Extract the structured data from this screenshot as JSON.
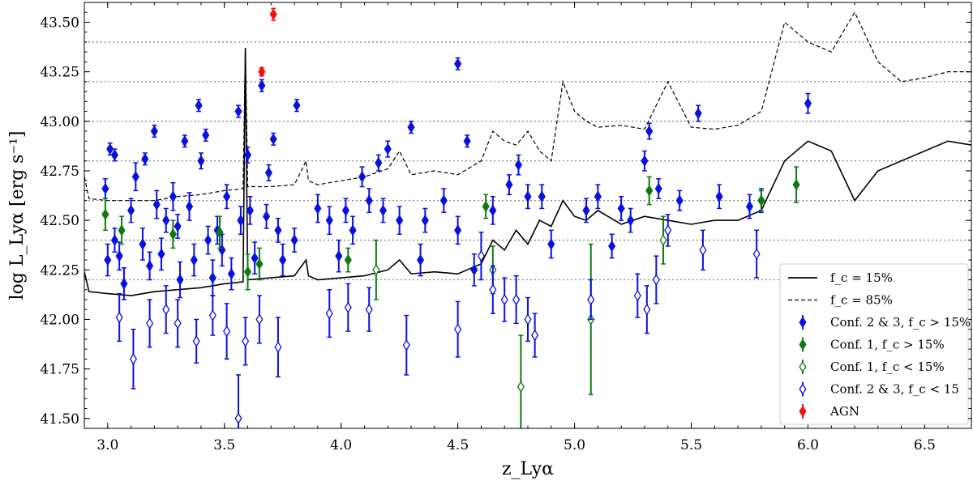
{
  "chart_data": {
    "type": "scatter",
    "xlabel": "z_Lyα",
    "ylabel": "log L_Lyα [erg s⁻¹]",
    "xlim": [
      2.9,
      6.7
    ],
    "ylim": [
      41.45,
      43.6
    ],
    "x_ticks": [
      "3.0",
      "3.5",
      "4.0",
      "4.5",
      "5.0",
      "5.5",
      "6.0",
      "6.5"
    ],
    "y_ticks": [
      "41.50",
      "41.75",
      "42.00",
      "42.25",
      "42.50",
      "42.75",
      "43.00",
      "43.25",
      "43.50"
    ],
    "reference_lines_y": [
      42.2,
      42.4,
      42.6,
      42.8,
      43.0,
      43.2,
      43.4
    ],
    "legend_position": "lower-right",
    "legend": [
      {
        "key": "fc15",
        "label": "f_c = 15%"
      },
      {
        "key": "fc85",
        "label": "f_c = 85%"
      },
      {
        "key": "conf23_gt",
        "label": "Conf. 2 & 3, f_c > 15%"
      },
      {
        "key": "conf1_gt",
        "label": "Conf. 1, f_c > 15%"
      },
      {
        "key": "conf1_lt",
        "label": "Conf. 1, f_c < 15%"
      },
      {
        "key": "conf23_lt",
        "label": "Conf. 2 & 3, f_c < 15"
      },
      {
        "key": "agn",
        "label": "AGN"
      }
    ],
    "colors": {
      "blue": "#0a10e0",
      "green": "#0f7a0f",
      "red": "#ee1111",
      "line": "#000000",
      "grid": "#888888"
    },
    "lines": {
      "fc15": [
        [
          2.9,
          42.24
        ],
        [
          2.92,
          42.14
        ],
        [
          3.0,
          42.13
        ],
        [
          3.1,
          42.12
        ],
        [
          3.2,
          42.14
        ],
        [
          3.3,
          42.15
        ],
        [
          3.4,
          42.16
        ],
        [
          3.5,
          42.18
        ],
        [
          3.58,
          42.19
        ],
        [
          3.59,
          43.37
        ],
        [
          3.6,
          42.2
        ],
        [
          3.7,
          42.21
        ],
        [
          3.8,
          42.22
        ],
        [
          3.85,
          42.3
        ],
        [
          3.86,
          42.22
        ],
        [
          3.9,
          42.2
        ],
        [
          4.0,
          42.21
        ],
        [
          4.1,
          42.22
        ],
        [
          4.2,
          42.25
        ],
        [
          4.25,
          42.3
        ],
        [
          4.3,
          42.23
        ],
        [
          4.4,
          42.24
        ],
        [
          4.5,
          42.23
        ],
        [
          4.6,
          42.28
        ],
        [
          4.65,
          42.4
        ],
        [
          4.7,
          42.35
        ],
        [
          4.75,
          42.45
        ],
        [
          4.8,
          42.38
        ],
        [
          4.85,
          42.5
        ],
        [
          4.9,
          42.47
        ],
        [
          4.95,
          42.6
        ],
        [
          5.0,
          42.52
        ],
        [
          5.05,
          42.5
        ],
        [
          5.1,
          42.55
        ],
        [
          5.2,
          42.48
        ],
        [
          5.3,
          42.52
        ],
        [
          5.4,
          42.5
        ],
        [
          5.5,
          42.48
        ],
        [
          5.6,
          42.5
        ],
        [
          5.7,
          42.5
        ],
        [
          5.8,
          42.55
        ],
        [
          5.9,
          42.8
        ],
        [
          6.0,
          42.9
        ],
        [
          6.1,
          42.85
        ],
        [
          6.2,
          42.6
        ],
        [
          6.3,
          42.75
        ],
        [
          6.4,
          42.8
        ],
        [
          6.5,
          42.85
        ],
        [
          6.6,
          42.9
        ],
        [
          6.7,
          42.88
        ]
      ],
      "fc85": [
        [
          2.9,
          42.72
        ],
        [
          2.92,
          42.61
        ],
        [
          3.0,
          42.6
        ],
        [
          3.1,
          42.6
        ],
        [
          3.2,
          42.6
        ],
        [
          3.3,
          42.62
        ],
        [
          3.4,
          42.63
        ],
        [
          3.5,
          42.65
        ],
        [
          3.58,
          42.66
        ],
        [
          3.59,
          43.37
        ],
        [
          3.6,
          42.67
        ],
        [
          3.7,
          42.67
        ],
        [
          3.8,
          42.68
        ],
        [
          3.85,
          42.8
        ],
        [
          3.86,
          42.7
        ],
        [
          3.9,
          42.68
        ],
        [
          4.0,
          42.7
        ],
        [
          4.1,
          42.72
        ],
        [
          4.2,
          42.76
        ],
        [
          4.25,
          42.85
        ],
        [
          4.3,
          42.73
        ],
        [
          4.4,
          42.75
        ],
        [
          4.5,
          42.73
        ],
        [
          4.6,
          42.8
        ],
        [
          4.65,
          42.95
        ],
        [
          4.7,
          42.9
        ],
        [
          4.75,
          42.88
        ],
        [
          4.8,
          42.95
        ],
        [
          4.85,
          42.85
        ],
        [
          4.9,
          42.8
        ],
        [
          4.95,
          43.2
        ],
        [
          5.0,
          43.05
        ],
        [
          5.05,
          43.0
        ],
        [
          5.1,
          42.97
        ],
        [
          5.2,
          42.98
        ],
        [
          5.3,
          42.96
        ],
        [
          5.4,
          43.2
        ],
        [
          5.5,
          42.97
        ],
        [
          5.6,
          42.96
        ],
        [
          5.7,
          42.98
        ],
        [
          5.8,
          43.05
        ],
        [
          5.9,
          43.5
        ],
        [
          6.0,
          43.4
        ],
        [
          6.1,
          43.35
        ],
        [
          6.2,
          43.55
        ],
        [
          6.3,
          43.3
        ],
        [
          6.4,
          43.2
        ],
        [
          6.5,
          43.22
        ],
        [
          6.6,
          43.25
        ],
        [
          6.7,
          43.25
        ]
      ]
    },
    "series": [
      {
        "key": "conf23_gt",
        "points": [
          [
            2.99,
            42.66,
            0.05
          ],
          [
            3.01,
            42.86,
            0.03
          ],
          [
            3.03,
            42.83,
            0.03
          ],
          [
            3.0,
            42.3,
            0.08
          ],
          [
            3.03,
            42.4,
            0.06
          ],
          [
            3.05,
            42.32,
            0.07
          ],
          [
            3.07,
            42.18,
            0.08
          ],
          [
            3.1,
            42.55,
            0.06
          ],
          [
            3.12,
            42.72,
            0.07
          ],
          [
            3.15,
            42.38,
            0.08
          ],
          [
            3.16,
            42.81,
            0.03
          ],
          [
            3.18,
            42.27,
            0.07
          ],
          [
            3.2,
            42.95,
            0.03
          ],
          [
            3.21,
            42.58,
            0.07
          ],
          [
            3.23,
            42.33,
            0.08
          ],
          [
            3.25,
            42.5,
            0.06
          ],
          [
            3.28,
            42.62,
            0.07
          ],
          [
            3.3,
            42.47,
            0.06
          ],
          [
            3.31,
            42.2,
            0.09
          ],
          [
            3.33,
            42.9,
            0.03
          ],
          [
            3.35,
            42.57,
            0.07
          ],
          [
            3.37,
            42.3,
            0.08
          ],
          [
            3.39,
            43.08,
            0.03
          ],
          [
            3.4,
            42.8,
            0.04
          ],
          [
            3.42,
            42.93,
            0.03
          ],
          [
            3.43,
            42.4,
            0.07
          ],
          [
            3.45,
            42.21,
            0.09
          ],
          [
            3.47,
            42.45,
            0.07
          ],
          [
            3.49,
            42.35,
            0.08
          ],
          [
            3.51,
            42.62,
            0.06
          ],
          [
            3.53,
            42.23,
            0.08
          ],
          [
            3.56,
            43.05,
            0.03
          ],
          [
            3.57,
            42.5,
            0.07
          ],
          [
            3.6,
            42.83,
            0.04
          ],
          [
            3.61,
            42.55,
            0.07
          ],
          [
            3.63,
            42.31,
            0.08
          ],
          [
            3.66,
            43.18,
            0.03
          ],
          [
            3.68,
            42.52,
            0.06
          ],
          [
            3.69,
            42.74,
            0.04
          ],
          [
            3.71,
            42.91,
            0.03
          ],
          [
            3.73,
            42.45,
            0.06
          ],
          [
            3.75,
            42.3,
            0.08
          ],
          [
            3.8,
            42.4,
            0.06
          ],
          [
            3.81,
            43.08,
            0.03
          ],
          [
            3.9,
            42.56,
            0.07
          ],
          [
            3.95,
            42.5,
            0.07
          ],
          [
            3.99,
            42.32,
            0.08
          ],
          [
            4.02,
            42.55,
            0.06
          ],
          [
            4.05,
            42.45,
            0.07
          ],
          [
            4.09,
            42.72,
            0.05
          ],
          [
            4.12,
            42.6,
            0.06
          ],
          [
            4.16,
            42.79,
            0.04
          ],
          [
            4.18,
            42.55,
            0.06
          ],
          [
            4.2,
            42.86,
            0.04
          ],
          [
            4.25,
            42.5,
            0.07
          ],
          [
            4.3,
            42.97,
            0.03
          ],
          [
            4.34,
            42.3,
            0.08
          ],
          [
            4.36,
            42.5,
            0.06
          ],
          [
            4.44,
            42.6,
            0.06
          ],
          [
            4.5,
            43.29,
            0.03
          ],
          [
            4.5,
            42.45,
            0.07
          ],
          [
            4.54,
            42.9,
            0.03
          ],
          [
            4.57,
            42.25,
            0.08
          ],
          [
            4.65,
            42.55,
            0.07
          ],
          [
            4.72,
            42.68,
            0.05
          ],
          [
            4.76,
            42.78,
            0.05
          ],
          [
            4.8,
            42.62,
            0.06
          ],
          [
            4.86,
            42.62,
            0.06
          ],
          [
            4.9,
            42.38,
            0.07
          ],
          [
            5.05,
            42.55,
            0.06
          ],
          [
            5.1,
            42.62,
            0.06
          ],
          [
            5.16,
            42.37,
            0.06
          ],
          [
            5.2,
            42.56,
            0.06
          ],
          [
            5.24,
            42.5,
            0.06
          ],
          [
            5.3,
            42.8,
            0.05
          ],
          [
            5.32,
            42.95,
            0.04
          ],
          [
            5.36,
            42.66,
            0.05
          ],
          [
            5.45,
            42.6,
            0.05
          ],
          [
            5.53,
            43.04,
            0.04
          ],
          [
            5.62,
            42.62,
            0.06
          ],
          [
            5.75,
            42.57,
            0.06
          ],
          [
            5.8,
            42.6,
            0.06
          ],
          [
            6.0,
            43.09,
            0.05
          ]
        ]
      },
      {
        "key": "conf1_gt",
        "points": [
          [
            2.99,
            42.53,
            0.08
          ],
          [
            3.06,
            42.45,
            0.07
          ],
          [
            3.28,
            42.43,
            0.07
          ],
          [
            3.48,
            42.44,
            0.08
          ],
          [
            3.6,
            42.24,
            0.09
          ],
          [
            3.65,
            42.28,
            0.08
          ],
          [
            4.03,
            42.3,
            0.06
          ],
          [
            4.62,
            42.57,
            0.06
          ],
          [
            5.32,
            42.65,
            0.07
          ],
          [
            5.8,
            42.6,
            0.05
          ],
          [
            5.95,
            42.68,
            0.09
          ]
        ]
      },
      {
        "key": "conf1_lt",
        "points": [
          [
            4.15,
            42.25,
            0.15
          ],
          [
            4.65,
            42.25,
            0.12
          ],
          [
            4.77,
            41.66,
            0.26
          ],
          [
            5.07,
            42.0,
            0.38
          ],
          [
            5.38,
            42.4,
            0.12
          ]
        ]
      },
      {
        "key": "conf23_lt",
        "points": [
          [
            3.05,
            42.01,
            0.12
          ],
          [
            3.11,
            41.8,
            0.15
          ],
          [
            3.18,
            41.98,
            0.12
          ],
          [
            3.25,
            42.05,
            0.12
          ],
          [
            3.3,
            41.98,
            0.12
          ],
          [
            3.38,
            41.89,
            0.11
          ],
          [
            3.45,
            42.02,
            0.1
          ],
          [
            3.51,
            41.94,
            0.14
          ],
          [
            3.56,
            41.5,
            0.22
          ],
          [
            3.59,
            41.89,
            0.12
          ],
          [
            3.65,
            42.0,
            0.12
          ],
          [
            3.73,
            41.86,
            0.15
          ],
          [
            3.95,
            42.03,
            0.12
          ],
          [
            4.03,
            42.06,
            0.12
          ],
          [
            4.12,
            42.05,
            0.11
          ],
          [
            4.28,
            41.87,
            0.15
          ],
          [
            4.5,
            41.95,
            0.14
          ],
          [
            4.6,
            42.32,
            0.12
          ],
          [
            4.65,
            42.15,
            0.12
          ],
          [
            4.7,
            42.1,
            0.11
          ],
          [
            4.75,
            42.1,
            0.12
          ],
          [
            4.8,
            42.0,
            0.11
          ],
          [
            4.83,
            41.92,
            0.11
          ],
          [
            5.07,
            42.1,
            0.1
          ],
          [
            5.27,
            42.12,
            0.11
          ],
          [
            5.31,
            42.05,
            0.12
          ],
          [
            5.35,
            42.2,
            0.12
          ],
          [
            5.4,
            42.45,
            0.08
          ],
          [
            5.55,
            42.35,
            0.1
          ],
          [
            5.78,
            42.33,
            0.12
          ]
        ]
      },
      {
        "key": "agn",
        "points": [
          [
            3.66,
            43.25,
            0.02
          ],
          [
            3.71,
            43.54,
            0.03
          ]
        ]
      }
    ]
  }
}
